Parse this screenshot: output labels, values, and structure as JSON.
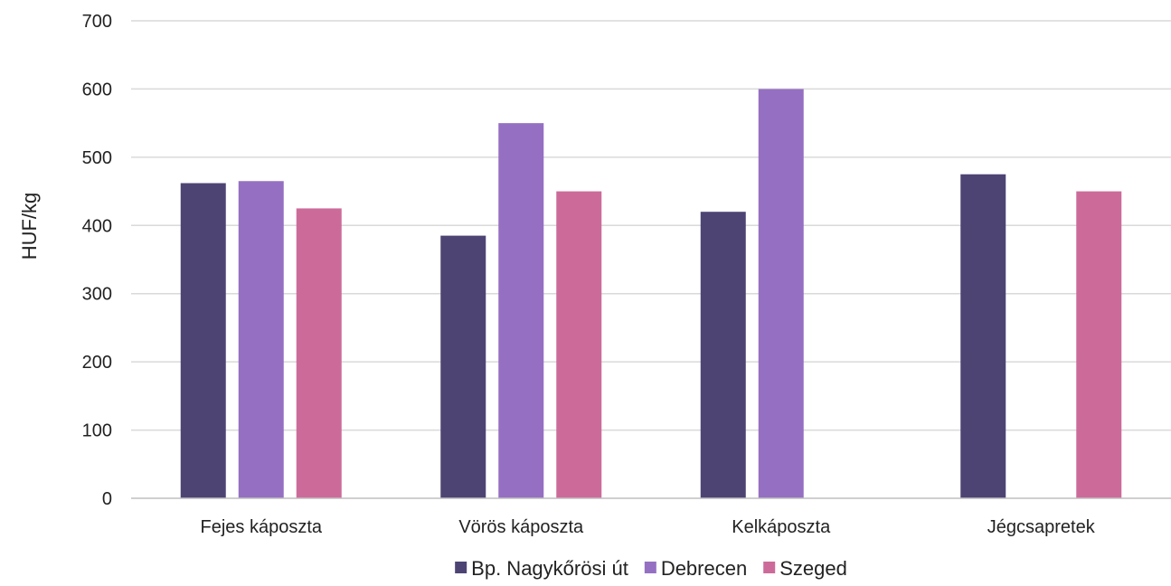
{
  "chart_data": {
    "type": "bar",
    "ylabel": "HUF/kg",
    "ylim": [
      0,
      700
    ],
    "yticks": [
      0,
      100,
      200,
      300,
      400,
      500,
      600,
      700
    ],
    "yticks_text": [
      "0",
      "100",
      "200",
      "300",
      "400",
      "500",
      "600",
      "700"
    ],
    "categories": [
      "Fejes káposzta",
      "Vörös káposzta",
      "Kelkáposzta",
      "Jégcsapretek"
    ],
    "series": [
      {
        "name": "Bp. Nagykőrösi út",
        "color": "#4e4474",
        "values": [
          462,
          385,
          420,
          475
        ]
      },
      {
        "name": "Debrecen",
        "color": "#9570c2",
        "values": [
          465,
          550,
          600,
          null
        ]
      },
      {
        "name": "Szeged",
        "color": "#cc6b9a",
        "values": [
          425,
          450,
          null,
          450
        ]
      }
    ],
    "grid": true,
    "legend_position": "bottom"
  }
}
